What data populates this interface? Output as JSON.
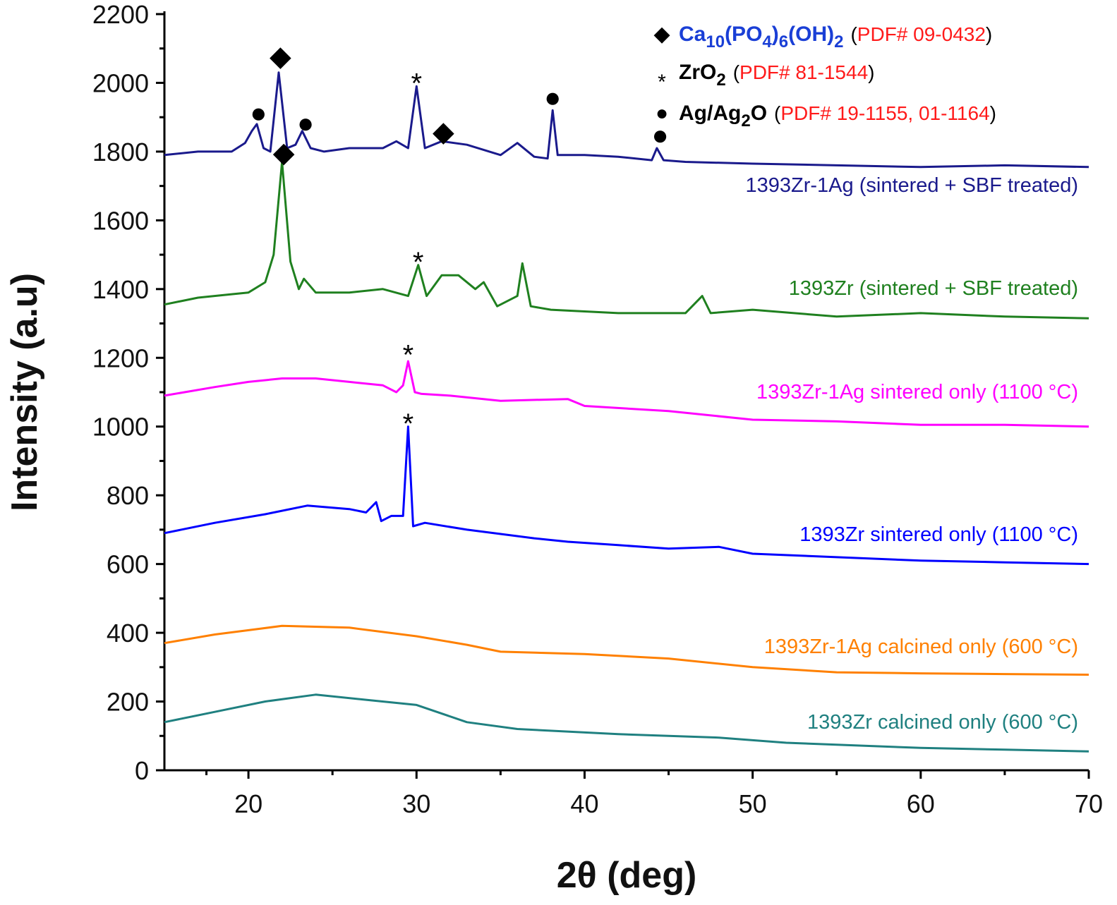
{
  "chart_data": {
    "type": "line",
    "xlabel": "2θ (deg)",
    "ylabel": "Intensity (a.u)",
    "xlim": [
      15,
      70
    ],
    "ylim": [
      0,
      2200
    ],
    "xticks": [
      20,
      30,
      40,
      50,
      60,
      70
    ],
    "yticks": [
      0,
      200,
      400,
      600,
      800,
      1000,
      1200,
      1400,
      1600,
      1800,
      2000,
      2200
    ],
    "series": [
      {
        "name": "1393Zr-1Ag (sintered +  SBF treated)",
        "color": "#1a1a8c",
        "x": [
          15,
          17,
          19,
          19.8,
          20.2,
          20.5,
          20.9,
          21.3,
          21.8,
          22.3,
          22.8,
          23.2,
          23.7,
          24.5,
          26,
          28,
          28.8,
          29.5,
          30,
          30.5,
          31.5,
          33,
          35,
          36,
          37,
          37.8,
          38.1,
          38.4,
          40,
          42,
          44,
          44.3,
          44.7,
          46,
          50,
          55,
          60,
          65,
          70
        ],
        "values": [
          1790,
          1800,
          1800,
          1825,
          1860,
          1880,
          1810,
          1800,
          2030,
          1810,
          1820,
          1860,
          1810,
          1800,
          1810,
          1810,
          1830,
          1810,
          1990,
          1810,
          1830,
          1820,
          1790,
          1825,
          1785,
          1780,
          1920,
          1790,
          1790,
          1785,
          1775,
          1810,
          1775,
          1770,
          1765,
          1760,
          1755,
          1760,
          1755
        ]
      },
      {
        "name": "1393Zr (sintered +  SBF treated)",
        "color": "#1f801f",
        "x": [
          15,
          17,
          19,
          20,
          21,
          21.5,
          22,
          22.5,
          23,
          23.3,
          24,
          26,
          28,
          29.5,
          30.1,
          30.6,
          31.5,
          32.5,
          33.5,
          34,
          34.8,
          36,
          36.3,
          36.8,
          38,
          42,
          46,
          47,
          47.5,
          50,
          55,
          60,
          65,
          70
        ],
        "values": [
          1355,
          1375,
          1385,
          1390,
          1420,
          1500,
          1770,
          1480,
          1400,
          1430,
          1390,
          1390,
          1400,
          1380,
          1470,
          1380,
          1440,
          1440,
          1400,
          1420,
          1350,
          1380,
          1475,
          1350,
          1340,
          1330,
          1330,
          1380,
          1330,
          1340,
          1320,
          1330,
          1320,
          1315
        ]
      },
      {
        "name": "1393Zr-1Ag sintered only (1100 °C)",
        "color": "#ff00ff",
        "x": [
          15,
          18,
          20,
          22,
          24,
          26,
          28,
          28.8,
          29.2,
          29.5,
          29.9,
          30.3,
          32,
          35,
          39,
          40,
          45,
          50,
          55,
          60,
          65,
          70
        ],
        "values": [
          1090,
          1115,
          1130,
          1140,
          1140,
          1130,
          1120,
          1100,
          1120,
          1190,
          1100,
          1095,
          1090,
          1075,
          1080,
          1060,
          1045,
          1020,
          1015,
          1005,
          1005,
          1000
        ]
      },
      {
        "name": "1393Zr sintered only (1100 °C)",
        "color": "#0000ff",
        "x": [
          15,
          18,
          21,
          23.5,
          26,
          27,
          27.6,
          27.9,
          28.5,
          29.2,
          29.5,
          29.8,
          30.5,
          33,
          37,
          39,
          42,
          45,
          48,
          50,
          55,
          60,
          65,
          70
        ],
        "values": [
          690,
          720,
          745,
          770,
          760,
          750,
          780,
          725,
          740,
          740,
          1000,
          710,
          720,
          700,
          675,
          665,
          655,
          645,
          650,
          630,
          620,
          610,
          605,
          600
        ]
      },
      {
        "name": "1393Zr-1Ag calcined only (600 °C)",
        "color": "#ff8000",
        "x": [
          15,
          18,
          22,
          26,
          30,
          33,
          35,
          40,
          45,
          50,
          55,
          60,
          65,
          70
        ],
        "values": [
          370,
          395,
          420,
          415,
          390,
          365,
          345,
          338,
          325,
          300,
          285,
          282,
          280,
          278
        ]
      },
      {
        "name": "1393Zr calcined only (600 °C)",
        "color": "#1f8080",
        "x": [
          15,
          18,
          21,
          24,
          27,
          30,
          33,
          36,
          42,
          48,
          52,
          60,
          65,
          70
        ],
        "values": [
          140,
          170,
          200,
          220,
          205,
          190,
          140,
          120,
          105,
          95,
          80,
          65,
          60,
          55
        ]
      }
    ],
    "markers": [
      {
        "symbol": "◆",
        "x": 21.9,
        "y": 2075
      },
      {
        "symbol": "◆",
        "x": 22.1,
        "y": 1795
      },
      {
        "symbol": "◆",
        "x": 31.6,
        "y": 1855
      },
      {
        "symbol": "*",
        "x": 30.0,
        "y": 2020
      },
      {
        "symbol": "*",
        "x": 30.1,
        "y": 1500
      },
      {
        "symbol": "*",
        "x": 29.5,
        "y": 1230
      },
      {
        "symbol": "*",
        "x": 29.5,
        "y": 1030
      },
      {
        "symbol": "●",
        "x": 20.6,
        "y": 1910
      },
      {
        "symbol": "●",
        "x": 23.4,
        "y": 1880
      },
      {
        "symbol": "●",
        "x": 38.1,
        "y": 1955
      },
      {
        "symbol": "●",
        "x": 44.5,
        "y": 1845
      }
    ],
    "legend": [
      {
        "symbol": "◆",
        "color": "#1a3fd6",
        "formula": [
          {
            "t": "Ca"
          },
          {
            "t": "10",
            "sub": true
          },
          {
            "t": "(PO"
          },
          {
            "t": "4",
            "sub": true
          },
          {
            "t": ")"
          },
          {
            "t": "6",
            "sub": true
          },
          {
            "t": "(OH)"
          },
          {
            "t": "2",
            "sub": true
          }
        ],
        "ref": [
          "(",
          "PDF# 09-0432",
          ")"
        ]
      },
      {
        "symbol": "*",
        "color": "#000000",
        "formula": [
          {
            "t": "ZrO"
          },
          {
            "t": "2",
            "sub": true
          }
        ],
        "ref": [
          "(",
          "PDF# 81-1544",
          ")"
        ]
      },
      {
        "symbol": "●",
        "color": "#000000",
        "formula": [
          {
            "t": "Ag/Ag"
          },
          {
            "t": "2",
            "sub": true
          },
          {
            "t": "O"
          }
        ],
        "ref": [
          "(",
          "PDF# 19-1155, 01-1164",
          ")"
        ]
      }
    ]
  }
}
